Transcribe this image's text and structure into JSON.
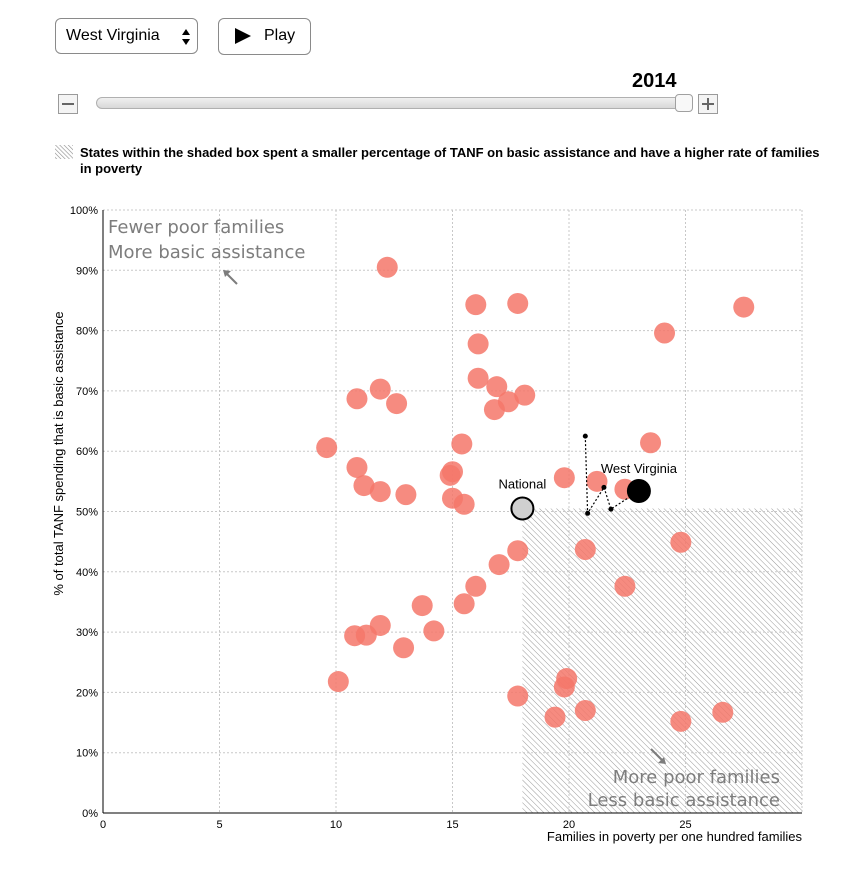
{
  "controls": {
    "state_select_value": "West Virginia",
    "play_label": "Play",
    "year": "2014"
  },
  "note": {
    "text": "States within the shaded box spent a smaller percentage of TANF on basic assistance and have a higher rate of families in poverty"
  },
  "chart_data": {
    "type": "scatter",
    "xlabel": "Families in poverty per one hundred families",
    "ylabel": "% of total TANF spending that is basic assistance",
    "xlim": [
      0,
      30
    ],
    "ylim": [
      0,
      100
    ],
    "x_ticks": [
      0,
      5,
      10,
      15,
      20,
      25
    ],
    "y_ticks": [
      0,
      10,
      20,
      30,
      40,
      50,
      60,
      70,
      80,
      90,
      100
    ],
    "y_tick_format": "percent",
    "grid": true,
    "shaded_region": {
      "x_min": 18,
      "x_max": 30,
      "y_min": 0,
      "y_max": 50.5
    },
    "annotations": [
      {
        "text": "Fewer poor families",
        "position": "top-left"
      },
      {
        "text": "More basic assistance",
        "position": "top-left"
      },
      {
        "text": "More poor families",
        "position": "bottom-right"
      },
      {
        "text": "Less basic assistance",
        "position": "bottom-right"
      }
    ],
    "colors": {
      "states": "#f4776a",
      "highlight": "#000000",
      "national": "#d0d0d0",
      "shade": "#9a9a9a"
    },
    "series": [
      {
        "values": [
          [
            12.2,
            90.5
          ],
          [
            16.0,
            84.3
          ],
          [
            17.8,
            84.5
          ],
          [
            27.5,
            83.9
          ],
          [
            24.1,
            79.6
          ],
          [
            16.1,
            77.8
          ],
          [
            11.9,
            70.3
          ],
          [
            10.9,
            68.7
          ],
          [
            12.6,
            67.9
          ],
          [
            16.1,
            72.1
          ],
          [
            16.9,
            70.7
          ],
          [
            17.4,
            68.2
          ],
          [
            18.1,
            69.3
          ],
          [
            16.8,
            66.9
          ],
          [
            9.6,
            60.6
          ],
          [
            15.4,
            61.2
          ],
          [
            23.5,
            61.4
          ],
          [
            10.9,
            57.3
          ],
          [
            11.2,
            54.3
          ],
          [
            11.9,
            53.3
          ],
          [
            13.0,
            52.8
          ],
          [
            14.9,
            56.0
          ],
          [
            15.0,
            56.6
          ],
          [
            15.0,
            52.2
          ],
          [
            15.5,
            51.2
          ],
          [
            19.8,
            55.6
          ],
          [
            21.2,
            55.0
          ],
          [
            22.4,
            53.7
          ],
          [
            17.8,
            43.5
          ],
          [
            20.7,
            43.7
          ],
          [
            24.8,
            44.9
          ],
          [
            17.0,
            41.2
          ],
          [
            16.0,
            37.6
          ],
          [
            22.4,
            37.6
          ],
          [
            15.5,
            34.7
          ],
          [
            13.7,
            34.4
          ],
          [
            14.2,
            30.2
          ],
          [
            11.9,
            31.1
          ],
          [
            11.3,
            29.5
          ],
          [
            10.8,
            29.4
          ],
          [
            12.9,
            27.4
          ],
          [
            10.1,
            21.8
          ],
          [
            17.8,
            19.4
          ],
          [
            19.9,
            22.3
          ],
          [
            19.8,
            20.9
          ],
          [
            20.7,
            17.0
          ],
          [
            19.4,
            15.9
          ],
          [
            24.8,
            15.2
          ],
          [
            26.6,
            16.7
          ]
        ]
      },
      {
        "name": "West Virginia",
        "values": [
          [
            23.0,
            53.4
          ]
        ],
        "trail": [
          [
            20.7,
            62.5
          ],
          [
            20.8,
            49.7
          ],
          [
            21.5,
            54.0
          ],
          [
            21.8,
            50.4
          ],
          [
            23.0,
            53.4
          ]
        ]
      },
      {
        "name": "National",
        "values": [
          [
            18.0,
            50.5
          ]
        ]
      }
    ]
  }
}
